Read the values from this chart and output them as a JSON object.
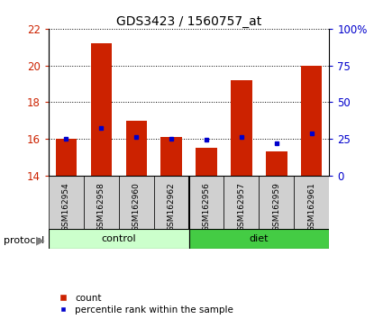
{
  "title": "GDS3423 / 1560757_at",
  "samples": [
    "GSM162954",
    "GSM162958",
    "GSM162960",
    "GSM162962",
    "GSM162956",
    "GSM162957",
    "GSM162959",
    "GSM162961"
  ],
  "red_bar_values": [
    16.0,
    21.2,
    17.0,
    16.1,
    15.5,
    19.2,
    15.3,
    20.0
  ],
  "blue_marker_values": [
    16.0,
    16.6,
    16.1,
    16.0,
    15.95,
    16.1,
    15.75,
    16.3
  ],
  "bar_bottom": 14.0,
  "ylim_left": [
    14,
    22
  ],
  "ylim_right": [
    0,
    100
  ],
  "yticks_left": [
    14,
    16,
    18,
    20,
    22
  ],
  "yticks_right": [
    0,
    25,
    50,
    75,
    100
  ],
  "ytick_labels_right": [
    "0",
    "25",
    "50",
    "75",
    "100%"
  ],
  "red_color": "#cc2200",
  "blue_color": "#0000cc",
  "bar_width": 0.6,
  "control_color": "#ccffcc",
  "diet_color": "#44cc44",
  "protocol_label": "protocol",
  "legend_count": "count",
  "legend_percentile": "percentile rank within the sample",
  "title_fontsize": 10,
  "axis_color_left": "#cc2200",
  "axis_color_right": "#0000cc",
  "tick_bg_color": "#d0d0d0",
  "label_fontsize": 6.5,
  "tick_fontsize": 8.5
}
